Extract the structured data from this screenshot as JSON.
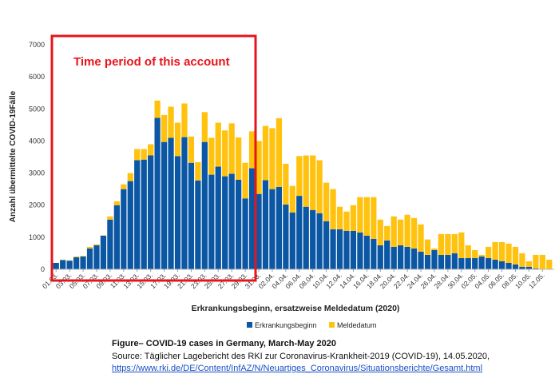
{
  "chart_data": {
    "type": "bar",
    "stacked": true,
    "xlabel": "Erkrankungsbeginn, ersatzweise Meldedatum (2020)",
    "ylabel": "Anzahl übermittelte COVID-19Fälle",
    "ylim": [
      0,
      7000
    ],
    "yticks": [
      "0",
      "1000",
      "2000",
      "3000",
      "4000",
      "5000",
      "6000",
      "7000"
    ],
    "grid": false,
    "legend_position": "bottom",
    "xtick_labels": [
      "01.03.",
      "03.03.",
      "05.03.",
      "07.03.",
      "09.03.",
      "11.03.",
      "13.03.",
      "15.03.",
      "17.03.",
      "19.03.",
      "21.03.",
      "23.03.",
      "25.03.",
      "27.03.",
      "29.03.",
      "31.03.",
      "02.04.",
      "04.04.",
      "06.04.",
      "08.04.",
      "10.04.",
      "12.04.",
      "14.04.",
      "16.04.",
      "18.04.",
      "20.04.",
      "22.04.",
      "24.04.",
      "26.04.",
      "28.04.",
      "30.04.",
      "02.05.",
      "04.05.",
      "06.05.",
      "08.05.",
      "10.05.",
      "12.05."
    ],
    "categories_start": "01.03.2020",
    "categories_end": "13.05.2020",
    "series": [
      {
        "name": "Erkrankungsbeginn",
        "color": "#0b57a4",
        "values": [
          200,
          290,
          270,
          380,
          400,
          650,
          750,
          1050,
          1550,
          2000,
          2500,
          2750,
          3400,
          3420,
          3550,
          4720,
          3970,
          4100,
          3530,
          4120,
          3320,
          2770,
          3970,
          2950,
          3200,
          2900,
          2980,
          2790,
          2210,
          3150,
          2350,
          2780,
          2500,
          2570,
          2020,
          1770,
          2290,
          1950,
          1850,
          1750,
          1500,
          1250,
          1250,
          1200,
          1200,
          1150,
          1050,
          950,
          750,
          900,
          700,
          750,
          700,
          650,
          550,
          450,
          600,
          450,
          450,
          500,
          350,
          350,
          350,
          400,
          350,
          300,
          250,
          200,
          150,
          80,
          80,
          30,
          10,
          0
        ]
      },
      {
        "name": "Meldedatum",
        "color": "#ffc20e",
        "values": [
          0,
          10,
          10,
          20,
          20,
          50,
          30,
          10,
          100,
          120,
          150,
          250,
          350,
          330,
          350,
          540,
          840,
          970,
          1040,
          1050,
          820,
          570,
          930,
          1150,
          1370,
          1430,
          1570,
          1320,
          1110,
          1150,
          1650,
          1690,
          1900,
          2140,
          1270,
          830,
          1240,
          1600,
          1700,
          1650,
          1200,
          1250,
          700,
          600,
          800,
          1100,
          1200,
          1300,
          800,
          450,
          950,
          800,
          1000,
          950,
          850,
          480,
          50,
          650,
          650,
          600,
          800,
          400,
          250,
          50,
          350,
          550,
          600,
          600,
          550,
          420,
          170,
          420,
          440,
          300
        ]
      }
    ],
    "annotation": "Time period of this account",
    "annotation_color": "#e8141b"
  },
  "caption": {
    "title": "Figure– COVID-19 cases in Germany, March-May 2020",
    "source": "Source: Täglicher Lagebericht des RKI zur Coronavirus-Krankheit-2019 (COVID-19), 14.05.2020,",
    "link": "https://www.rki.de/DE/Content/InfAZ/N/Neuartiges_Coronavirus/Situationsberichte/Gesamt.html"
  }
}
